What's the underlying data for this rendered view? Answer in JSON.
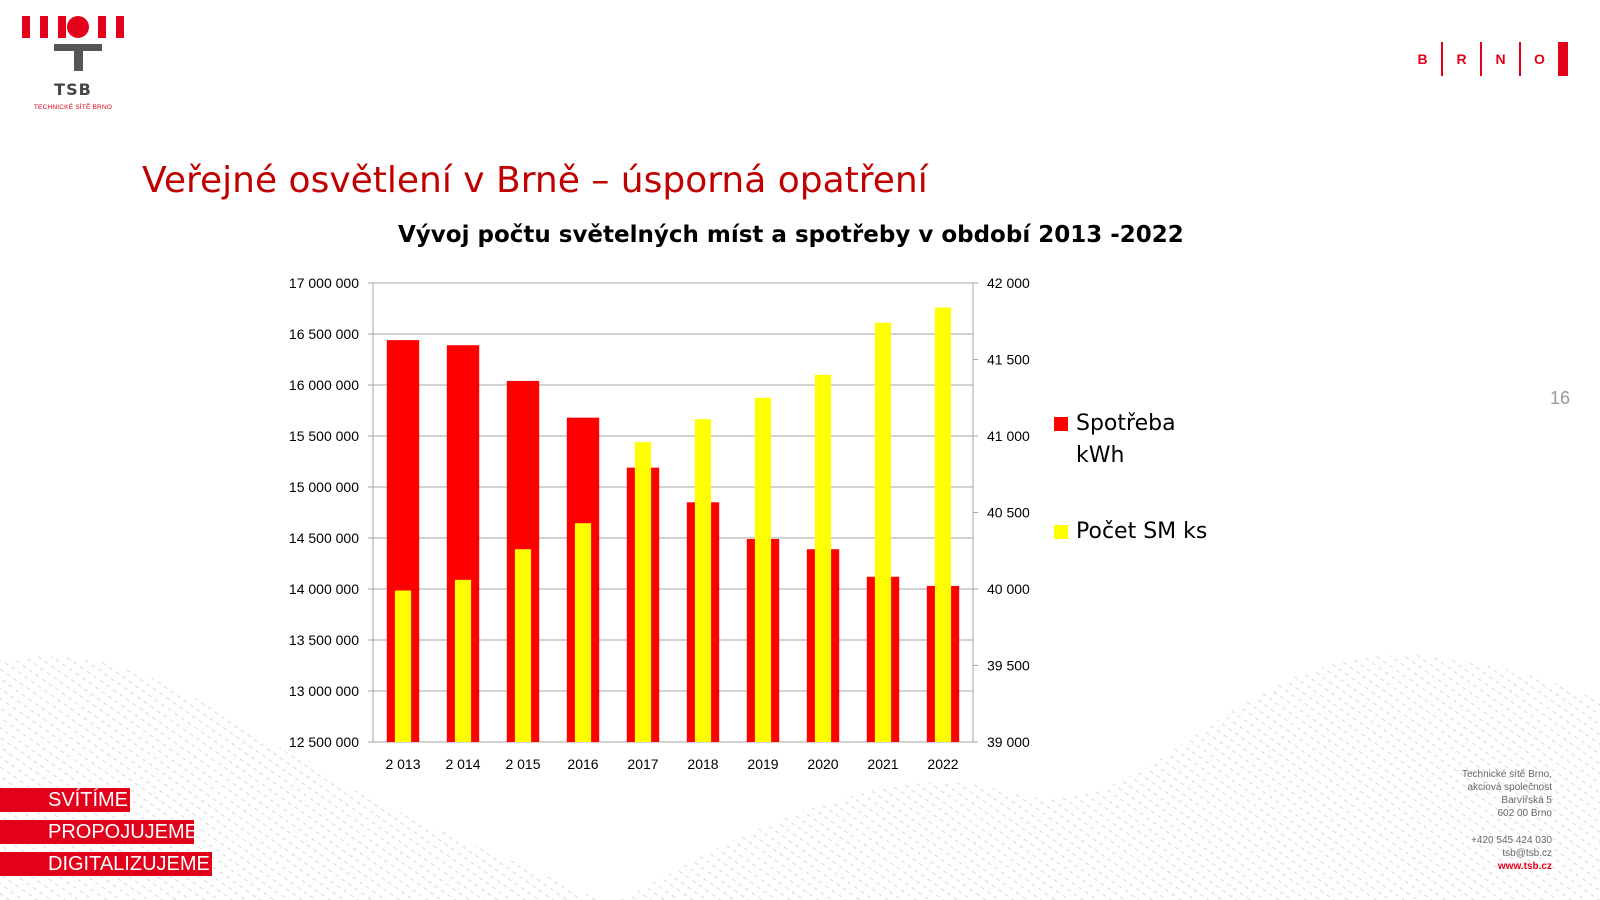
{
  "logo": {
    "name": "TSB",
    "subtitle": "TECHNICKÉ SÍTĚ BRNO"
  },
  "brno_logo": {
    "letters": [
      "B",
      "R",
      "N",
      "O"
    ]
  },
  "slide_title": "Veřejné osvětlení v Brně – úsporná opatření",
  "page_number": "16",
  "taglines": [
    "SVÍTÍME",
    "PROPOJUJEME",
    "DIGITALIZUJEME"
  ],
  "address": {
    "line1": "Technické sítě Brno,",
    "line2": "akciová společnost",
    "line3": "Barvířská 5",
    "line4": "602 00 Brno",
    "phone": "+420 545 424 030",
    "email": "tsb@tsb.cz",
    "web": "www.tsb.cz"
  },
  "colors": {
    "brand_red": "#e2001a",
    "title_red": "#c00000",
    "series_red": "#ff0000",
    "series_yellow": "#ffff00"
  },
  "chart_data": {
    "type": "bar",
    "title": "Vývoj počtu světelných míst a spotřeby v období 2013 -2022",
    "categories": [
      "2 013",
      "2 014",
      "2 015",
      "2016",
      "2017",
      "2018",
      "2019",
      "2020",
      "2021",
      "2022"
    ],
    "y_left": {
      "ticks": [
        "12 500 000",
        "13 000 000",
        "13 500 000",
        "14 000 000",
        "14 500 000",
        "15 000 000",
        "15 500 000",
        "16 000 000",
        "16 500 000",
        "17 000 000"
      ],
      "ylim": [
        12500000,
        17000000
      ]
    },
    "y_right": {
      "ticks": [
        "39 000",
        "39 500",
        "40 000",
        "40 500",
        "41 000",
        "41 500",
        "42 000"
      ],
      "ylim": [
        39000,
        42000
      ]
    },
    "series": [
      {
        "name": "Spotřeba kWh",
        "axis": "left",
        "color": "#ff0000",
        "values": [
          16440000,
          16390000,
          16040000,
          15680000,
          15190000,
          14850000,
          14490000,
          14390000,
          14120000,
          14030000
        ]
      },
      {
        "name": "Počet SM ks",
        "axis": "right",
        "color": "#ffff00",
        "values": [
          39990,
          40060,
          40260,
          40430,
          40960,
          41110,
          41250,
          41400,
          41740,
          41840
        ]
      }
    ],
    "legend": "right",
    "grid": true
  }
}
